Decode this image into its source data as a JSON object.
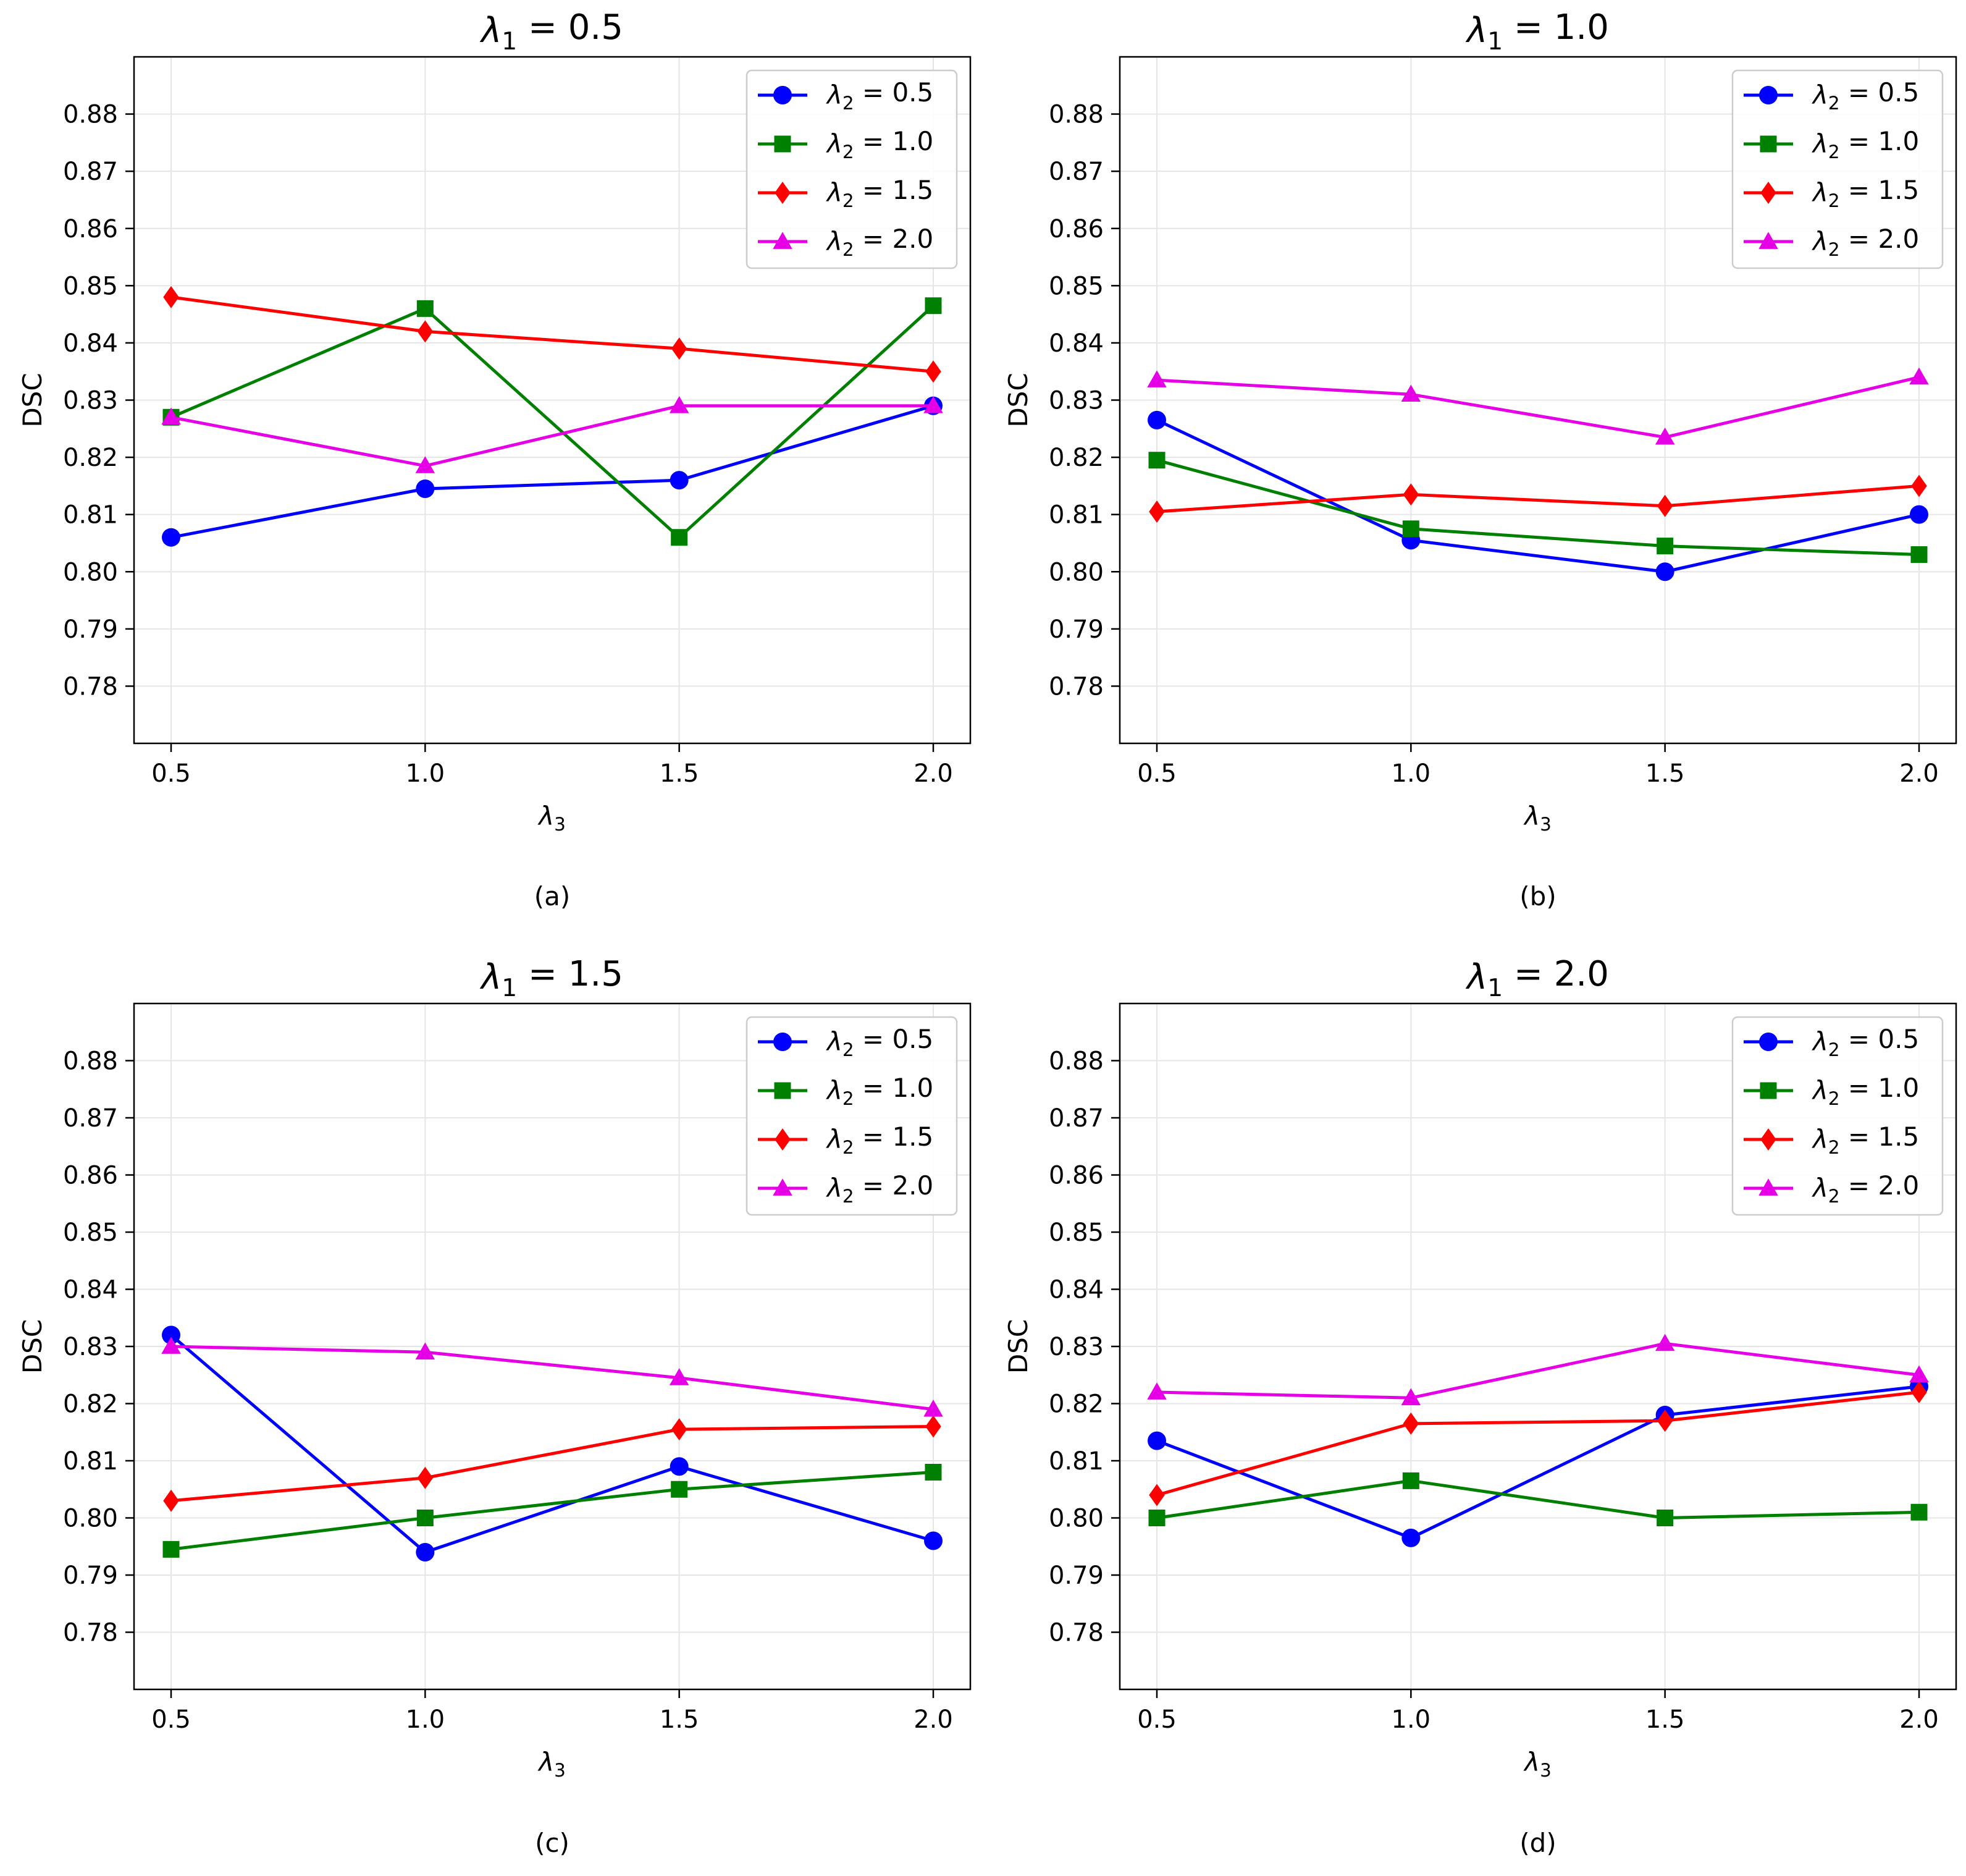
{
  "figure": {
    "captions": [
      "(a)",
      "(b)",
      "(c)",
      "(d)"
    ]
  },
  "colors": {
    "lambda2_0.5": "#0000ff",
    "lambda2_1.0": "#008000",
    "lambda2_1.5": "#ff0000",
    "lambda2_2.0": "#e600e6"
  },
  "chart_data": [
    {
      "type": "line",
      "title": "λ1 = 0.5",
      "title_main": "λ",
      "title_sub": "1",
      "title_value": " = 0.5",
      "xlabel": "λ",
      "xlabel_sub": "3",
      "ylabel": "DSC",
      "x": [
        0.5,
        1.0,
        1.5,
        2.0
      ],
      "x_tick_labels": [
        "0.5",
        "1.0",
        "1.5",
        "2.0"
      ],
      "y_ticks": [
        0.78,
        0.79,
        0.8,
        0.81,
        0.82,
        0.83,
        0.84,
        0.85,
        0.86,
        0.87,
        0.88
      ],
      "y_tick_labels": [
        "0.78",
        "0.79",
        "0.80",
        "0.81",
        "0.82",
        "0.83",
        "0.84",
        "0.85",
        "0.86",
        "0.87",
        "0.88"
      ],
      "ylim": [
        0.77,
        0.89
      ],
      "grid": true,
      "legend_position": "top-right",
      "series": [
        {
          "name": "λ2 = 0.5",
          "legend_main": "λ",
          "legend_sub": "2",
          "legend_value": " = 0.5",
          "marker": "circle",
          "values": [
            0.806,
            0.8145,
            0.816,
            0.829
          ]
        },
        {
          "name": "λ2 = 1.0",
          "legend_main": "λ",
          "legend_sub": "2",
          "legend_value": " = 1.0",
          "marker": "square",
          "values": [
            0.827,
            0.846,
            0.806,
            0.8465
          ]
        },
        {
          "name": "λ2 = 1.5",
          "legend_main": "λ",
          "legend_sub": "2",
          "legend_value": " = 1.5",
          "marker": "diamond",
          "values": [
            0.848,
            0.842,
            0.839,
            0.835
          ]
        },
        {
          "name": "λ2 = 2.0",
          "legend_main": "λ",
          "legend_sub": "2",
          "legend_value": " = 2.0",
          "marker": "triangle",
          "values": [
            0.827,
            0.8185,
            0.829,
            0.829
          ]
        }
      ]
    },
    {
      "type": "line",
      "title": "λ1 = 1.0",
      "title_main": "λ",
      "title_sub": "1",
      "title_value": " = 1.0",
      "xlabel": "λ",
      "xlabel_sub": "3",
      "ylabel": "DSC",
      "x": [
        0.5,
        1.0,
        1.5,
        2.0
      ],
      "x_tick_labels": [
        "0.5",
        "1.0",
        "1.5",
        "2.0"
      ],
      "y_ticks": [
        0.78,
        0.79,
        0.8,
        0.81,
        0.82,
        0.83,
        0.84,
        0.85,
        0.86,
        0.87,
        0.88
      ],
      "y_tick_labels": [
        "0.78",
        "0.79",
        "0.80",
        "0.81",
        "0.82",
        "0.83",
        "0.84",
        "0.85",
        "0.86",
        "0.87",
        "0.88"
      ],
      "ylim": [
        0.77,
        0.89
      ],
      "grid": true,
      "legend_position": "top-right",
      "series": [
        {
          "name": "λ2 = 0.5",
          "legend_main": "λ",
          "legend_sub": "2",
          "legend_value": " = 0.5",
          "marker": "circle",
          "values": [
            0.8265,
            0.8055,
            0.8,
            0.81
          ]
        },
        {
          "name": "λ2 = 1.0",
          "legend_main": "λ",
          "legend_sub": "2",
          "legend_value": " = 1.0",
          "marker": "square",
          "values": [
            0.8195,
            0.8075,
            0.8045,
            0.803
          ]
        },
        {
          "name": "λ2 = 1.5",
          "legend_main": "λ",
          "legend_sub": "2",
          "legend_value": " = 1.5",
          "marker": "diamond",
          "values": [
            0.8105,
            0.8135,
            0.8115,
            0.815
          ]
        },
        {
          "name": "λ2 = 2.0",
          "legend_main": "λ",
          "legend_sub": "2",
          "legend_value": " = 2.0",
          "marker": "triangle",
          "values": [
            0.8335,
            0.831,
            0.8235,
            0.834
          ]
        }
      ]
    },
    {
      "type": "line",
      "title": "λ1 = 1.5",
      "title_main": "λ",
      "title_sub": "1",
      "title_value": " = 1.5",
      "xlabel": "λ",
      "xlabel_sub": "3",
      "ylabel": "DSC",
      "x": [
        0.5,
        1.0,
        1.5,
        2.0
      ],
      "x_tick_labels": [
        "0.5",
        "1.0",
        "1.5",
        "2.0"
      ],
      "y_ticks": [
        0.78,
        0.79,
        0.8,
        0.81,
        0.82,
        0.83,
        0.84,
        0.85,
        0.86,
        0.87,
        0.88
      ],
      "y_tick_labels": [
        "0.78",
        "0.79",
        "0.80",
        "0.81",
        "0.82",
        "0.83",
        "0.84",
        "0.85",
        "0.86",
        "0.87",
        "0.88"
      ],
      "ylim": [
        0.77,
        0.89
      ],
      "grid": true,
      "legend_position": "top-right",
      "series": [
        {
          "name": "λ2 = 0.5",
          "legend_main": "λ",
          "legend_sub": "2",
          "legend_value": " = 0.5",
          "marker": "circle",
          "values": [
            0.832,
            0.794,
            0.809,
            0.796
          ]
        },
        {
          "name": "λ2 = 1.0",
          "legend_main": "λ",
          "legend_sub": "2",
          "legend_value": " = 1.0",
          "marker": "square",
          "values": [
            0.7945,
            0.8,
            0.805,
            0.808
          ]
        },
        {
          "name": "λ2 = 1.5",
          "legend_main": "λ",
          "legend_sub": "2",
          "legend_value": " = 1.5",
          "marker": "diamond",
          "values": [
            0.803,
            0.807,
            0.8155,
            0.816
          ]
        },
        {
          "name": "λ2 = 2.0",
          "legend_main": "λ",
          "legend_sub": "2",
          "legend_value": " = 2.0",
          "marker": "triangle",
          "values": [
            0.83,
            0.829,
            0.8245,
            0.819
          ]
        }
      ]
    },
    {
      "type": "line",
      "title": "λ1 = 2.0",
      "title_main": "λ",
      "title_sub": "1",
      "title_value": " = 2.0",
      "xlabel": "λ",
      "xlabel_sub": "3",
      "ylabel": "DSC",
      "x": [
        0.5,
        1.0,
        1.5,
        2.0
      ],
      "x_tick_labels": [
        "0.5",
        "1.0",
        "1.5",
        "2.0"
      ],
      "y_ticks": [
        0.78,
        0.79,
        0.8,
        0.81,
        0.82,
        0.83,
        0.84,
        0.85,
        0.86,
        0.87,
        0.88
      ],
      "y_tick_labels": [
        "0.78",
        "0.79",
        "0.80",
        "0.81",
        "0.82",
        "0.83",
        "0.84",
        "0.85",
        "0.86",
        "0.87",
        "0.88"
      ],
      "ylim": [
        0.77,
        0.89
      ],
      "grid": true,
      "legend_position": "top-right",
      "series": [
        {
          "name": "λ2 = 0.5",
          "legend_main": "λ",
          "legend_sub": "2",
          "legend_value": " = 0.5",
          "marker": "circle",
          "values": [
            0.8135,
            0.7965,
            0.818,
            0.823
          ]
        },
        {
          "name": "λ2 = 1.0",
          "legend_main": "λ",
          "legend_sub": "2",
          "legend_value": " = 1.0",
          "marker": "square",
          "values": [
            0.8,
            0.8065,
            0.8,
            0.801
          ]
        },
        {
          "name": "λ2 = 1.5",
          "legend_main": "λ",
          "legend_sub": "2",
          "legend_value": " = 1.5",
          "marker": "diamond",
          "values": [
            0.804,
            0.8165,
            0.817,
            0.822
          ]
        },
        {
          "name": "λ2 = 2.0",
          "legend_main": "λ",
          "legend_sub": "2",
          "legend_value": " = 2.0",
          "marker": "triangle",
          "values": [
            0.822,
            0.821,
            0.8305,
            0.825
          ]
        }
      ]
    }
  ]
}
